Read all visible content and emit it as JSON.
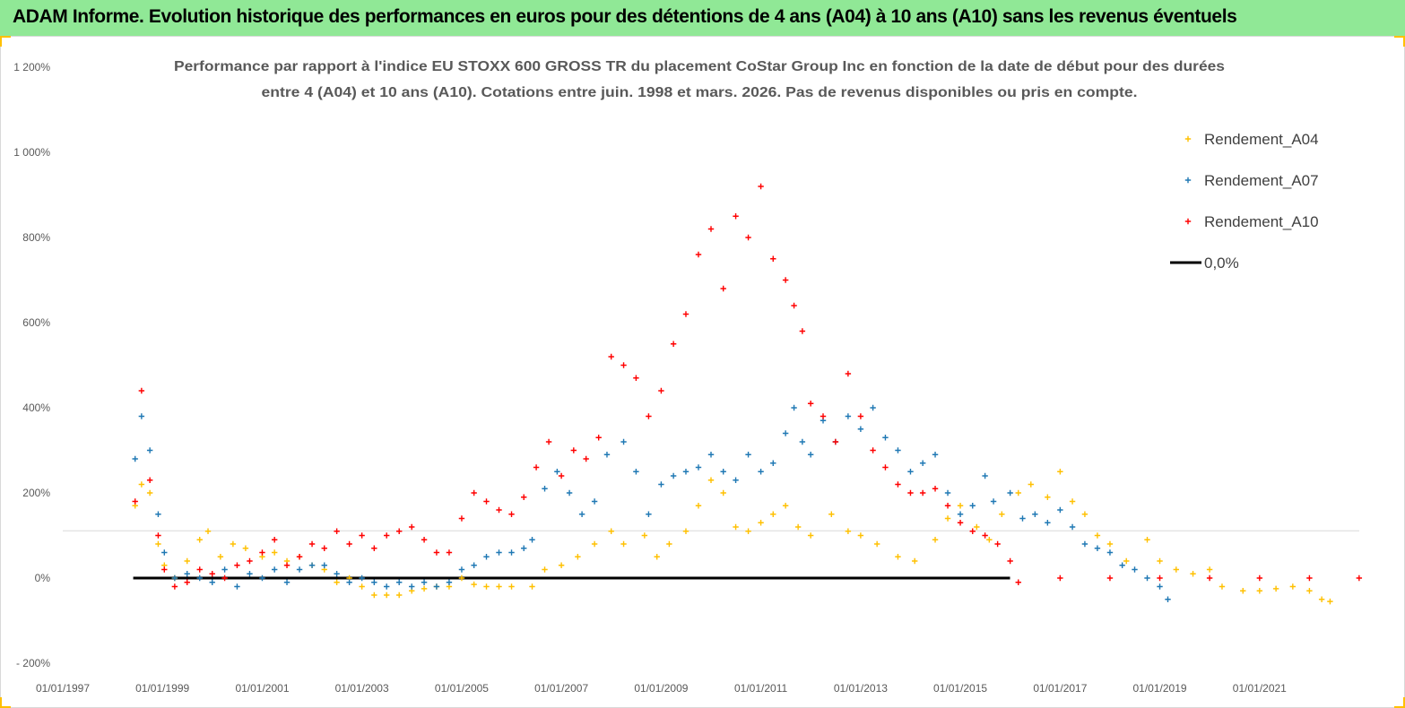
{
  "header": {
    "banner_title": "ADAM Informe. Evolution historique des performances en euros pour des détentions de 4 ans (A04) à 10 ans (A10) sans les revenus éventuels"
  },
  "colors": {
    "banner_bg": "#90e896",
    "A04": "#ffc000",
    "A07": "#1f78b4",
    "A10": "#ff0000",
    "zero_line": "#000000",
    "grid": "#d9d9d9"
  },
  "chart_data": {
    "type": "scatter",
    "title_lines": [
      "Performance par rapport à l'indice EU STOXX 600 GROSS TR  du placement CoStar Group Inc en fonction de la date de début pour des durées",
      "entre 4 (A04) et 10 ans (A10).  Cotations entre juin. 1998 et mars. 2026.  Pas de revenus disponibles ou pris en compte."
    ],
    "xlabel": "",
    "ylabel": "",
    "x_range": [
      "1997-01-01",
      "2023-01-01"
    ],
    "x_ticks": [
      "01/01/1997",
      "01/01/1999",
      "01/01/2001",
      "01/01/2003",
      "01/01/2005",
      "01/01/2007",
      "01/01/2009",
      "01/01/2011",
      "01/01/2013",
      "01/01/2015",
      "01/01/2017",
      "01/01/2019",
      "01/01/2021"
    ],
    "y_range": [
      -200,
      1200
    ],
    "y_ticks": [
      {
        "value": 1200,
        "label": "1 200%"
      },
      {
        "value": 1000,
        "label": "1 000%"
      },
      {
        "value": 800,
        "label": "800%"
      },
      {
        "value": 600,
        "label": "600%"
      },
      {
        "value": 400,
        "label": "400%"
      },
      {
        "value": 200,
        "label": "200%"
      },
      {
        "value": 0,
        "label": "0%"
      },
      {
        "value": -200,
        "label": "- 200%"
      }
    ],
    "grid": "horizontal line at 111%",
    "legend_position": "top-right",
    "legend": [
      {
        "key": "A04",
        "label": "Rendement_A04",
        "marker": "+"
      },
      {
        "key": "A07",
        "label": "Rendement_A07",
        "marker": "+"
      },
      {
        "key": "A10",
        "label": "Rendement_A10",
        "marker": "+"
      },
      {
        "key": "zero",
        "label": "0,0%",
        "marker": "line"
      }
    ],
    "series": [
      {
        "name": "Rendement_A04",
        "key": "A04",
        "points": [
          [
            "1998-06-15",
            170
          ],
          [
            "1998-08-01",
            220
          ],
          [
            "1998-10-01",
            200
          ],
          [
            "1998-12-01",
            80
          ],
          [
            "1999-01-15",
            30
          ],
          [
            "1999-04-01",
            0
          ],
          [
            "1999-07-01",
            40
          ],
          [
            "1999-10-01",
            90
          ],
          [
            "1999-12-01",
            110
          ],
          [
            "2000-03-01",
            50
          ],
          [
            "2000-06-01",
            80
          ],
          [
            "2000-09-01",
            70
          ],
          [
            "2001-01-01",
            50
          ],
          [
            "2001-04-01",
            60
          ],
          [
            "2001-07-01",
            40
          ],
          [
            "2001-10-01",
            50
          ],
          [
            "2002-01-01",
            30
          ],
          [
            "2002-04-01",
            20
          ],
          [
            "2002-07-01",
            -10
          ],
          [
            "2002-10-01",
            0
          ],
          [
            "2003-01-01",
            -20
          ],
          [
            "2003-04-01",
            -40
          ],
          [
            "2003-07-01",
            -40
          ],
          [
            "2003-10-01",
            -40
          ],
          [
            "2004-01-01",
            -30
          ],
          [
            "2004-04-01",
            -25
          ],
          [
            "2004-07-01",
            -20
          ],
          [
            "2004-10-01",
            -20
          ],
          [
            "2005-01-01",
            0
          ],
          [
            "2005-04-01",
            -15
          ],
          [
            "2005-07-01",
            -20
          ],
          [
            "2005-10-01",
            -20
          ],
          [
            "2006-01-01",
            -20
          ],
          [
            "2006-06-01",
            -20
          ],
          [
            "2006-09-01",
            20
          ],
          [
            "2007-01-01",
            30
          ],
          [
            "2007-05-01",
            50
          ],
          [
            "2007-09-01",
            80
          ],
          [
            "2008-01-01",
            110
          ],
          [
            "2008-04-01",
            80
          ],
          [
            "2008-09-01",
            100
          ],
          [
            "2008-12-01",
            50
          ],
          [
            "2009-03-01",
            80
          ],
          [
            "2009-07-01",
            110
          ],
          [
            "2009-10-01",
            170
          ],
          [
            "2010-01-01",
            230
          ],
          [
            "2010-04-01",
            200
          ],
          [
            "2010-07-01",
            120
          ],
          [
            "2010-10-01",
            110
          ],
          [
            "2011-01-01",
            130
          ],
          [
            "2011-04-01",
            150
          ],
          [
            "2011-07-01",
            170
          ],
          [
            "2011-10-01",
            120
          ],
          [
            "2012-01-01",
            100
          ],
          [
            "2012-06-01",
            150
          ],
          [
            "2012-10-01",
            110
          ],
          [
            "2013-01-01",
            100
          ],
          [
            "2013-05-01",
            80
          ],
          [
            "2013-10-01",
            50
          ],
          [
            "2014-02-01",
            40
          ],
          [
            "2014-07-01",
            90
          ],
          [
            "2014-10-01",
            140
          ],
          [
            "2015-01-01",
            170
          ],
          [
            "2015-05-01",
            120
          ],
          [
            "2015-08-01",
            90
          ],
          [
            "2015-11-01",
            150
          ],
          [
            "2016-03-01",
            200
          ],
          [
            "2016-06-01",
            220
          ],
          [
            "2016-10-01",
            190
          ],
          [
            "2017-01-01",
            250
          ],
          [
            "2017-04-01",
            180
          ],
          [
            "2017-07-01",
            150
          ],
          [
            "2017-10-01",
            100
          ],
          [
            "2018-01-01",
            80
          ],
          [
            "2018-05-01",
            40
          ],
          [
            "2018-10-01",
            90
          ],
          [
            "2019-01-01",
            40
          ],
          [
            "2019-05-01",
            20
          ],
          [
            "2019-09-01",
            10
          ],
          [
            "2020-01-01",
            20
          ],
          [
            "2020-04-01",
            -20
          ],
          [
            "2020-09-01",
            -30
          ],
          [
            "2021-01-01",
            -30
          ],
          [
            "2021-05-01",
            -25
          ],
          [
            "2021-09-01",
            -20
          ],
          [
            "2022-01-01",
            -30
          ],
          [
            "2022-04-01",
            -50
          ],
          [
            "2022-06-01",
            -55
          ]
        ]
      },
      {
        "name": "Rendement_A07",
        "key": "A07",
        "points": [
          [
            "1998-06-15",
            280
          ],
          [
            "1998-08-01",
            380
          ],
          [
            "1998-10-01",
            300
          ],
          [
            "1998-12-01",
            150
          ],
          [
            "1999-01-15",
            60
          ],
          [
            "1999-04-01",
            0
          ],
          [
            "1999-07-01",
            10
          ],
          [
            "1999-10-01",
            0
          ],
          [
            "2000-01-01",
            -10
          ],
          [
            "2000-04-01",
            20
          ],
          [
            "2000-07-01",
            -20
          ],
          [
            "2000-10-01",
            10
          ],
          [
            "2001-01-01",
            0
          ],
          [
            "2001-04-01",
            20
          ],
          [
            "2001-07-01",
            -10
          ],
          [
            "2001-10-01",
            20
          ],
          [
            "2002-01-01",
            30
          ],
          [
            "2002-04-01",
            30
          ],
          [
            "2002-07-01",
            10
          ],
          [
            "2002-10-01",
            -10
          ],
          [
            "2003-01-01",
            0
          ],
          [
            "2003-04-01",
            -10
          ],
          [
            "2003-07-01",
            -20
          ],
          [
            "2003-10-01",
            -10
          ],
          [
            "2004-01-01",
            -20
          ],
          [
            "2004-04-01",
            -10
          ],
          [
            "2004-07-01",
            -20
          ],
          [
            "2004-10-01",
            -10
          ],
          [
            "2005-01-01",
            20
          ],
          [
            "2005-04-01",
            30
          ],
          [
            "2005-07-01",
            50
          ],
          [
            "2005-10-01",
            60
          ],
          [
            "2006-01-01",
            60
          ],
          [
            "2006-04-01",
            70
          ],
          [
            "2006-06-01",
            90
          ],
          [
            "2006-09-01",
            210
          ],
          [
            "2006-12-01",
            250
          ],
          [
            "2007-03-01",
            200
          ],
          [
            "2007-06-01",
            150
          ],
          [
            "2007-09-01",
            180
          ],
          [
            "2007-12-01",
            290
          ],
          [
            "2008-04-01",
            320
          ],
          [
            "2008-07-01",
            250
          ],
          [
            "2008-10-01",
            150
          ],
          [
            "2009-01-01",
            220
          ],
          [
            "2009-04-01",
            240
          ],
          [
            "2009-07-01",
            250
          ],
          [
            "2009-10-01",
            260
          ],
          [
            "2010-01-01",
            290
          ],
          [
            "2010-04-01",
            250
          ],
          [
            "2010-07-01",
            230
          ],
          [
            "2010-10-01",
            290
          ],
          [
            "2011-01-01",
            250
          ],
          [
            "2011-04-01",
            270
          ],
          [
            "2011-07-01",
            340
          ],
          [
            "2011-09-01",
            400
          ],
          [
            "2011-11-01",
            320
          ],
          [
            "2012-01-01",
            290
          ],
          [
            "2012-04-01",
            370
          ],
          [
            "2012-07-01",
            320
          ],
          [
            "2012-10-01",
            380
          ],
          [
            "2013-01-01",
            350
          ],
          [
            "2013-04-01",
            400
          ],
          [
            "2013-07-01",
            330
          ],
          [
            "2013-10-01",
            300
          ],
          [
            "2014-01-01",
            250
          ],
          [
            "2014-04-01",
            270
          ],
          [
            "2014-07-01",
            290
          ],
          [
            "2014-10-01",
            200
          ],
          [
            "2015-01-01",
            150
          ],
          [
            "2015-04-01",
            170
          ],
          [
            "2015-07-01",
            240
          ],
          [
            "2015-09-01",
            180
          ],
          [
            "2016-01-01",
            200
          ],
          [
            "2016-04-01",
            140
          ],
          [
            "2016-07-01",
            150
          ],
          [
            "2016-10-01",
            130
          ],
          [
            "2017-01-01",
            160
          ],
          [
            "2017-04-01",
            120
          ],
          [
            "2017-07-01",
            80
          ],
          [
            "2017-10-01",
            70
          ],
          [
            "2018-01-01",
            60
          ],
          [
            "2018-04-01",
            30
          ],
          [
            "2018-07-01",
            20
          ],
          [
            "2018-10-01",
            0
          ],
          [
            "2019-01-01",
            -20
          ],
          [
            "2019-03-01",
            -50
          ]
        ]
      },
      {
        "name": "Rendement_A10",
        "key": "A10",
        "points": [
          [
            "1998-06-15",
            180
          ],
          [
            "1998-08-01",
            440
          ],
          [
            "1998-10-01",
            230
          ],
          [
            "1998-12-01",
            100
          ],
          [
            "1999-01-15",
            20
          ],
          [
            "1999-04-01",
            -20
          ],
          [
            "1999-07-01",
            -10
          ],
          [
            "1999-10-01",
            20
          ],
          [
            "2000-01-01",
            10
          ],
          [
            "2000-04-01",
            0
          ],
          [
            "2000-07-01",
            30
          ],
          [
            "2000-10-01",
            40
          ],
          [
            "2001-01-01",
            60
          ],
          [
            "2001-04-01",
            90
          ],
          [
            "2001-07-01",
            30
          ],
          [
            "2001-10-01",
            50
          ],
          [
            "2002-01-01",
            80
          ],
          [
            "2002-04-01",
            70
          ],
          [
            "2002-07-01",
            110
          ],
          [
            "2002-10-01",
            80
          ],
          [
            "2003-01-01",
            100
          ],
          [
            "2003-04-01",
            70
          ],
          [
            "2003-07-01",
            100
          ],
          [
            "2003-10-01",
            110
          ],
          [
            "2004-01-01",
            120
          ],
          [
            "2004-04-01",
            90
          ],
          [
            "2004-07-01",
            60
          ],
          [
            "2004-10-01",
            60
          ],
          [
            "2005-01-01",
            140
          ],
          [
            "2005-04-01",
            200
          ],
          [
            "2005-07-01",
            180
          ],
          [
            "2005-10-01",
            160
          ],
          [
            "2006-01-01",
            150
          ],
          [
            "2006-04-01",
            190
          ],
          [
            "2006-07-01",
            260
          ],
          [
            "2006-10-01",
            320
          ],
          [
            "2007-01-01",
            240
          ],
          [
            "2007-04-01",
            300
          ],
          [
            "2007-07-01",
            280
          ],
          [
            "2007-10-01",
            330
          ],
          [
            "2008-01-01",
            520
          ],
          [
            "2008-04-01",
            500
          ],
          [
            "2008-07-01",
            470
          ],
          [
            "2008-10-01",
            380
          ],
          [
            "2009-01-01",
            440
          ],
          [
            "2009-04-01",
            550
          ],
          [
            "2009-07-01",
            620
          ],
          [
            "2009-10-01",
            760
          ],
          [
            "2010-01-01",
            820
          ],
          [
            "2010-04-01",
            680
          ],
          [
            "2010-07-01",
            850
          ],
          [
            "2010-10-01",
            800
          ],
          [
            "2011-01-01",
            920
          ],
          [
            "2011-04-01",
            750
          ],
          [
            "2011-07-01",
            700
          ],
          [
            "2011-09-01",
            640
          ],
          [
            "2011-11-01",
            580
          ],
          [
            "2012-01-01",
            410
          ],
          [
            "2012-04-01",
            380
          ],
          [
            "2012-07-01",
            320
          ],
          [
            "2012-10-01",
            480
          ],
          [
            "2013-01-01",
            380
          ],
          [
            "2013-04-01",
            300
          ],
          [
            "2013-07-01",
            260
          ],
          [
            "2013-10-01",
            220
          ],
          [
            "2014-01-01",
            200
          ],
          [
            "2014-04-01",
            200
          ],
          [
            "2014-07-01",
            210
          ],
          [
            "2014-10-01",
            170
          ],
          [
            "2015-01-01",
            130
          ],
          [
            "2015-04-01",
            110
          ],
          [
            "2015-07-01",
            100
          ],
          [
            "2015-10-01",
            80
          ],
          [
            "2016-01-01",
            40
          ],
          [
            "2016-03-01",
            -10
          ],
          [
            "2017-01-01",
            0
          ],
          [
            "2018-01-01",
            0
          ],
          [
            "2019-01-01",
            0
          ],
          [
            "2020-01-01",
            0
          ],
          [
            "2021-01-01",
            0
          ],
          [
            "2022-01-01",
            0
          ],
          [
            "2022-12-31",
            0
          ]
        ]
      }
    ],
    "reference_line": {
      "name": "0,0%",
      "y": 0,
      "x_start": "1998-06-01",
      "x_end": "2015-12-31"
    }
  }
}
